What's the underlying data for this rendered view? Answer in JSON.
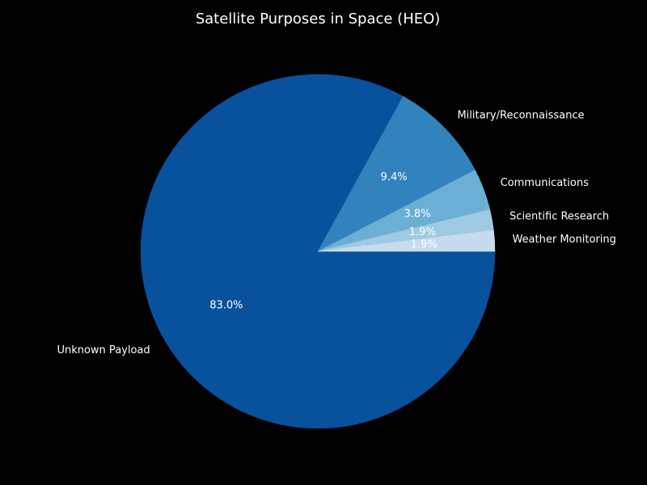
{
  "chart_data": {
    "type": "pie",
    "title": "Satellite Purposes in Space (HEO)",
    "categories": [
      "Unknown Payload",
      "Military/Reconnaissance",
      "Communications",
      "Scientific Research",
      "Weather Monitoring"
    ],
    "values": [
      83.0,
      9.4,
      3.8,
      1.9,
      1.9
    ],
    "value_labels": [
      "83.0%",
      "9.4%",
      "3.8%",
      "1.9%",
      "1.9%"
    ],
    "colors": [
      "#08519c",
      "#3182bd",
      "#6baed6",
      "#9ecae1",
      "#c6dbef"
    ],
    "start_angle_deg": 0,
    "direction": "clockwise",
    "background": "#000000"
  }
}
